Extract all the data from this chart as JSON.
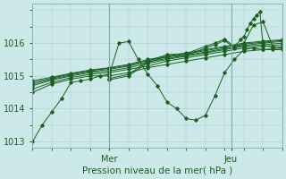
{
  "xlabel": "Pression niveau de la mer( hPa )",
  "bg_color": "#cce8e8",
  "grid_color": "#aacccc",
  "line_color": "#1a6020",
  "ylim": [
    1012.8,
    1017.2
  ],
  "xlim": [
    0,
    78
  ],
  "yticks": [
    1013,
    1014,
    1015,
    1016
  ],
  "xticks": [
    24,
    62
  ],
  "xticklabels": [
    "Mer",
    "Jeu"
  ],
  "series": [
    {
      "x": [
        0,
        3,
        6,
        9,
        12,
        15,
        18,
        21,
        24,
        27,
        30,
        33,
        36,
        39,
        42,
        45,
        48,
        51,
        54,
        57,
        60,
        63,
        66,
        69,
        72,
        75,
        78
      ],
      "y": [
        1013.0,
        1013.5,
        1013.9,
        1014.3,
        1014.8,
        1014.85,
        1014.9,
        1015.0,
        1015.05,
        1016.0,
        1016.05,
        1015.5,
        1015.05,
        1014.7,
        1014.2,
        1014.0,
        1013.7,
        1013.65,
        1013.8,
        1014.4,
        1015.1,
        1015.5,
        1015.8,
        1015.85,
        1015.8,
        1015.8,
        1015.8
      ]
    },
    {
      "x": [
        0,
        6,
        12,
        18,
        24,
        30,
        36,
        42,
        48,
        54,
        60,
        66,
        72,
        78
      ],
      "y": [
        1014.5,
        1014.75,
        1014.9,
        1015.0,
        1015.0,
        1015.1,
        1015.25,
        1015.35,
        1015.45,
        1015.55,
        1015.65,
        1015.75,
        1015.8,
        1015.85
      ]
    },
    {
      "x": [
        0,
        6,
        12,
        18,
        24,
        30,
        36,
        42,
        48,
        54,
        60,
        66,
        72,
        78
      ],
      "y": [
        1014.6,
        1014.8,
        1014.95,
        1015.05,
        1015.1,
        1015.2,
        1015.3,
        1015.45,
        1015.55,
        1015.65,
        1015.75,
        1015.85,
        1015.9,
        1015.95
      ]
    },
    {
      "x": [
        0,
        6,
        12,
        18,
        24,
        30,
        36,
        42,
        48,
        54,
        60,
        66,
        72,
        78
      ],
      "y": [
        1014.7,
        1014.87,
        1015.0,
        1015.1,
        1015.15,
        1015.25,
        1015.38,
        1015.5,
        1015.6,
        1015.7,
        1015.8,
        1015.9,
        1015.95,
        1016.0
      ]
    },
    {
      "x": [
        0,
        6,
        12,
        18,
        24,
        30,
        36,
        42,
        48,
        54,
        60,
        66,
        72,
        78
      ],
      "y": [
        1014.75,
        1014.9,
        1015.03,
        1015.13,
        1015.2,
        1015.3,
        1015.43,
        1015.53,
        1015.63,
        1015.73,
        1015.83,
        1015.93,
        1016.0,
        1016.05
      ]
    },
    {
      "x": [
        0,
        6,
        12,
        18,
        24,
        30,
        36,
        42,
        48,
        54,
        60,
        66,
        72,
        78
      ],
      "y": [
        1014.8,
        1014.93,
        1015.06,
        1015.16,
        1015.23,
        1015.33,
        1015.47,
        1015.57,
        1015.67,
        1015.77,
        1015.87,
        1015.97,
        1016.03,
        1016.08
      ]
    },
    {
      "x": [
        0,
        6,
        12,
        18,
        24,
        30,
        36,
        42,
        48,
        54,
        60,
        66,
        72,
        78
      ],
      "y": [
        1014.85,
        1014.96,
        1015.08,
        1015.18,
        1015.25,
        1015.35,
        1015.5,
        1015.6,
        1015.7,
        1015.8,
        1015.9,
        1016.0,
        1016.06,
        1016.1
      ]
    },
    {
      "x": [
        24,
        30,
        36,
        42,
        48,
        54,
        57,
        60,
        63,
        66,
        69,
        72,
        75,
        78
      ],
      "y": [
        1014.88,
        1015.0,
        1015.4,
        1015.6,
        1015.62,
        1015.85,
        1015.95,
        1016.08,
        1015.85,
        1016.0,
        1016.55,
        1016.65,
        1015.9,
        1015.85
      ]
    },
    {
      "x": [
        24,
        30,
        36,
        42,
        48,
        54,
        57,
        60,
        63,
        65,
        66,
        67,
        68,
        69,
        70,
        71,
        72,
        75,
        78
      ],
      "y": [
        1014.92,
        1015.05,
        1015.45,
        1015.65,
        1015.68,
        1015.9,
        1016.0,
        1016.12,
        1015.9,
        1016.1,
        1016.2,
        1016.4,
        1016.6,
        1016.75,
        1016.85,
        1016.95,
        1015.92,
        1015.88,
        1015.88
      ]
    }
  ]
}
